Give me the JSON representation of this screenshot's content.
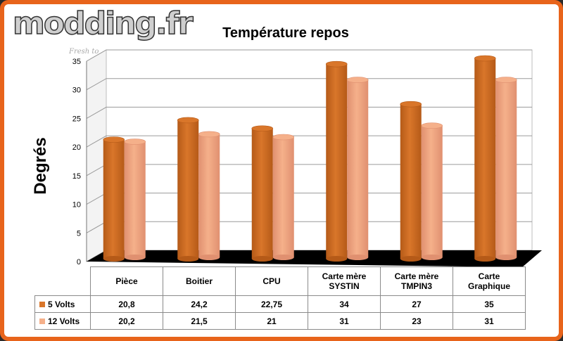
{
  "logo": {
    "text": "modding.fr",
    "tagline": "Fresh to"
  },
  "chart_data": {
    "type": "bar",
    "title": "Température repos",
    "ylabel": "Degrés",
    "ylim": [
      0,
      35
    ],
    "yticks": [
      "0",
      "5",
      "10",
      "15",
      "20",
      "25",
      "30",
      "35"
    ],
    "categories": [
      "Pièce",
      "Boitier",
      "CPU",
      "Carte mère SYSTIN",
      "Carte mère TMPIN3",
      "Carte Graphique"
    ],
    "series": [
      {
        "name": "5 Volts",
        "color": "#d9762a",
        "values": [
          20.8,
          24.2,
          22.75,
          34,
          27,
          35
        ]
      },
      {
        "name": "12 Volts",
        "color": "#f5b08a",
        "values": [
          20.2,
          21.5,
          21,
          31,
          23,
          31
        ]
      }
    ]
  },
  "table": {
    "headers": [
      "Pièce",
      "Boitier",
      "CPU",
      "Carte mère\nSYSTIN",
      "Carte mère\nTMPIN3",
      "Carte\nGraphique"
    ],
    "rows": [
      {
        "label": "5 Volts",
        "cells": [
          "20,8",
          "24,2",
          "22,75",
          "34",
          "27",
          "35"
        ]
      },
      {
        "label": "12 Volts",
        "cells": [
          "20,2",
          "21,5",
          "21",
          "31",
          "23",
          "31"
        ]
      }
    ]
  }
}
